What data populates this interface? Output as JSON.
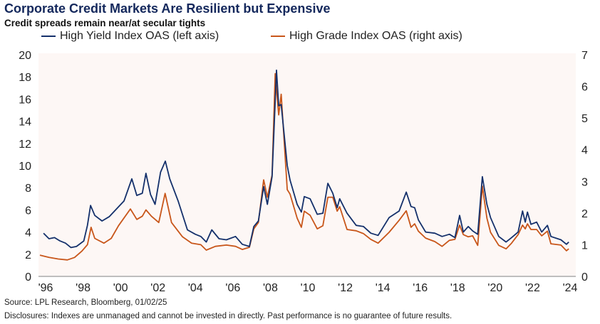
{
  "title": "Corporate Credit Markets Are Resilient but Expensive",
  "subtitle": "Credit spreads remain near/at secular tights",
  "source": "Source: LPL Research, Bloomberg, 01/02/25",
  "disclosures": "Disclosures: Indexes are unmanaged and cannot be invested in directly. Past performance is no guarantee of future results.",
  "chart_data": {
    "type": "line",
    "title": "Corporate Credit Markets Are Resilient but Expensive",
    "subtitle": "Credit spreads remain near/at secular tights",
    "xlim": [
      1996,
      2025
    ],
    "x_tick_labels": [
      "'96",
      "'98",
      "'00",
      "'02",
      "'04",
      "'06",
      "'08",
      "'10",
      "'12",
      "'14",
      "'16",
      "'18",
      "'20",
      "'22",
      "'24"
    ],
    "y_left": {
      "lim": [
        0,
        20
      ],
      "ticks": [
        "0",
        "2",
        "4",
        "6",
        "8",
        "10",
        "12",
        "14",
        "16",
        "18",
        "20"
      ]
    },
    "y_right": {
      "lim": [
        0,
        7
      ],
      "ticks": [
        "0",
        "1",
        "2",
        "3",
        "4",
        "5",
        "6",
        "7"
      ]
    },
    "grid": false,
    "legend_placement": "top",
    "plot_background": "#fdf7f5",
    "series": [
      {
        "name": "High Yield Index OAS (left axis)",
        "axis": "left",
        "color": "#14306b",
        "points": [
          [
            1996.2,
            3.9
          ],
          [
            1996.5,
            3.4
          ],
          [
            1996.8,
            3.5
          ],
          [
            1997.1,
            3.2
          ],
          [
            1997.4,
            3.0
          ],
          [
            1997.7,
            2.6
          ],
          [
            1998.0,
            2.7
          ],
          [
            1998.4,
            3.2
          ],
          [
            1998.6,
            4.6
          ],
          [
            1998.77,
            6.4
          ],
          [
            1999.0,
            5.5
          ],
          [
            1999.4,
            5.0
          ],
          [
            1999.8,
            5.4
          ],
          [
            2000.2,
            6.1
          ],
          [
            2000.6,
            6.8
          ],
          [
            2001.03,
            8.8
          ],
          [
            2001.3,
            7.3
          ],
          [
            2001.6,
            7.5
          ],
          [
            2001.8,
            9.3
          ],
          [
            2002.05,
            7.4
          ],
          [
            2002.3,
            6.5
          ],
          [
            2002.6,
            9.4
          ],
          [
            2002.86,
            10.4
          ],
          [
            2003.1,
            8.8
          ],
          [
            2003.56,
            6.8
          ],
          [
            2004.07,
            4.2
          ],
          [
            2004.5,
            3.8
          ],
          [
            2004.8,
            3.6
          ],
          [
            2005.1,
            3.1
          ],
          [
            2005.4,
            4.2
          ],
          [
            2005.8,
            3.4
          ],
          [
            2006.2,
            3.3
          ],
          [
            2006.7,
            3.6
          ],
          [
            2007.07,
            2.9
          ],
          [
            2007.46,
            2.7
          ],
          [
            2007.7,
            4.5
          ],
          [
            2007.95,
            5.0
          ],
          [
            2008.24,
            8.1
          ],
          [
            2008.44,
            6.5
          ],
          [
            2008.7,
            9.0
          ],
          [
            2008.94,
            18.6
          ],
          [
            2009.06,
            15.4
          ],
          [
            2009.2,
            15.5
          ],
          [
            2009.53,
            10.0
          ],
          [
            2009.68,
            8.7
          ],
          [
            2010.07,
            6.5
          ],
          [
            2010.3,
            5.8
          ],
          [
            2010.46,
            7.2
          ],
          [
            2010.78,
            7.0
          ],
          [
            2011.17,
            5.6
          ],
          [
            2011.48,
            5.7
          ],
          [
            2011.75,
            8.4
          ],
          [
            2012.02,
            7.5
          ],
          [
            2012.26,
            6.2
          ],
          [
            2012.4,
            7.0
          ],
          [
            2012.8,
            5.7
          ],
          [
            2013.3,
            4.6
          ],
          [
            2013.7,
            4.5
          ],
          [
            2014.1,
            3.9
          ],
          [
            2014.5,
            3.7
          ],
          [
            2015.1,
            5.3
          ],
          [
            2015.65,
            5.9
          ],
          [
            2016.04,
            7.6
          ],
          [
            2016.3,
            6.3
          ],
          [
            2016.5,
            6.2
          ],
          [
            2016.7,
            5.1
          ],
          [
            2017.1,
            4.0
          ],
          [
            2017.6,
            3.9
          ],
          [
            2018.0,
            3.6
          ],
          [
            2018.4,
            3.8
          ],
          [
            2018.7,
            3.5
          ],
          [
            2018.96,
            5.5
          ],
          [
            2019.16,
            4.0
          ],
          [
            2019.43,
            4.5
          ],
          [
            2019.67,
            4.1
          ],
          [
            2019.95,
            3.8
          ],
          [
            2020.2,
            9.0
          ],
          [
            2020.45,
            6.5
          ],
          [
            2020.65,
            5.3
          ],
          [
            2021.1,
            3.6
          ],
          [
            2021.5,
            3.1
          ],
          [
            2021.8,
            3.5
          ],
          [
            2022.16,
            4.0
          ],
          [
            2022.4,
            5.9
          ],
          [
            2022.55,
            4.9
          ],
          [
            2022.67,
            5.8
          ],
          [
            2022.86,
            4.7
          ],
          [
            2023.17,
            4.9
          ],
          [
            2023.45,
            4.0
          ],
          [
            2023.76,
            4.6
          ],
          [
            2023.95,
            3.6
          ],
          [
            2024.5,
            3.3
          ],
          [
            2024.8,
            2.9
          ],
          [
            2024.93,
            3.1
          ]
        ]
      },
      {
        "name": "High Grade Index OAS (right axis)",
        "axis": "right",
        "color": "#c8561a",
        "points": [
          [
            1996.0,
            0.67
          ],
          [
            1996.5,
            0.6
          ],
          [
            1997.0,
            0.55
          ],
          [
            1997.5,
            0.52
          ],
          [
            1997.9,
            0.6
          ],
          [
            1998.3,
            0.8
          ],
          [
            1998.6,
            1.0
          ],
          [
            1998.8,
            1.55
          ],
          [
            1999.0,
            1.2
          ],
          [
            1999.5,
            1.05
          ],
          [
            1999.9,
            1.2
          ],
          [
            2000.3,
            1.6
          ],
          [
            2000.95,
            2.13
          ],
          [
            2001.3,
            1.8
          ],
          [
            2001.6,
            1.9
          ],
          [
            2001.8,
            2.1
          ],
          [
            2002.1,
            1.9
          ],
          [
            2002.5,
            1.7
          ],
          [
            2002.85,
            2.62
          ],
          [
            2003.2,
            1.7
          ],
          [
            2003.8,
            1.25
          ],
          [
            2004.3,
            1.05
          ],
          [
            2004.8,
            1.0
          ],
          [
            2005.1,
            0.83
          ],
          [
            2005.6,
            0.95
          ],
          [
            2006.2,
            0.99
          ],
          [
            2006.7,
            0.95
          ],
          [
            2007.07,
            0.85
          ],
          [
            2007.46,
            0.92
          ],
          [
            2007.7,
            1.5
          ],
          [
            2007.95,
            1.7
          ],
          [
            2008.24,
            3.05
          ],
          [
            2008.44,
            2.5
          ],
          [
            2008.7,
            3.2
          ],
          [
            2008.87,
            6.4
          ],
          [
            2009.06,
            5.1
          ],
          [
            2009.2,
            5.75
          ],
          [
            2009.53,
            2.74
          ],
          [
            2009.68,
            2.6
          ],
          [
            2010.07,
            1.84
          ],
          [
            2010.3,
            1.55
          ],
          [
            2010.46,
            2.06
          ],
          [
            2010.78,
            1.93
          ],
          [
            2011.17,
            1.5
          ],
          [
            2011.48,
            1.6
          ],
          [
            2011.75,
            2.5
          ],
          [
            2012.02,
            2.5
          ],
          [
            2012.26,
            2.06
          ],
          [
            2012.4,
            2.2
          ],
          [
            2012.8,
            1.48
          ],
          [
            2013.3,
            1.44
          ],
          [
            2013.7,
            1.35
          ],
          [
            2014.1,
            1.17
          ],
          [
            2014.5,
            1.05
          ],
          [
            2015.1,
            1.39
          ],
          [
            2015.65,
            1.77
          ],
          [
            2016.04,
            2.07
          ],
          [
            2016.3,
            1.55
          ],
          [
            2016.5,
            1.66
          ],
          [
            2016.7,
            1.43
          ],
          [
            2017.1,
            1.21
          ],
          [
            2017.6,
            1.1
          ],
          [
            2018.0,
            0.95
          ],
          [
            2018.4,
            1.14
          ],
          [
            2018.7,
            1.17
          ],
          [
            2018.96,
            1.62
          ],
          [
            2019.16,
            1.32
          ],
          [
            2019.43,
            1.25
          ],
          [
            2019.67,
            1.28
          ],
          [
            2019.95,
            0.98
          ],
          [
            2020.2,
            2.85
          ],
          [
            2020.45,
            1.84
          ],
          [
            2020.65,
            1.39
          ],
          [
            2021.1,
            0.98
          ],
          [
            2021.5,
            0.87
          ],
          [
            2021.8,
            1.05
          ],
          [
            2022.16,
            1.32
          ],
          [
            2022.4,
            1.62
          ],
          [
            2022.55,
            1.5
          ],
          [
            2022.67,
            1.66
          ],
          [
            2022.86,
            1.48
          ],
          [
            2023.17,
            1.48
          ],
          [
            2023.45,
            1.28
          ],
          [
            2023.76,
            1.43
          ],
          [
            2023.95,
            1.03
          ],
          [
            2024.5,
            0.99
          ],
          [
            2024.8,
            0.81
          ],
          [
            2024.93,
            0.87
          ]
        ]
      }
    ]
  }
}
